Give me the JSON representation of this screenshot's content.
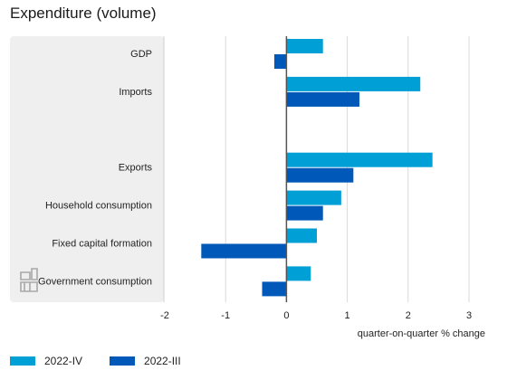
{
  "title": "Expenditure (volume)",
  "colors": {
    "series_a": "#009fd6",
    "series_b": "#0058b8",
    "panel": "#efefef",
    "panel_border": "#cfcfcf",
    "zero_line": "#555555",
    "grid": "#d9d9d9"
  },
  "logo_icon": "cbs-logo-icon",
  "chart_data": {
    "type": "bar",
    "orientation": "horizontal",
    "categories": [
      "GDP",
      "Imports",
      "",
      "Exports",
      "Household consumption",
      "Fixed capital formation",
      "Government consumption"
    ],
    "series": [
      {
        "name": "2022-IV",
        "values": [
          0.6,
          2.2,
          null,
          2.4,
          0.9,
          0.5,
          0.4
        ]
      },
      {
        "name": "2022-III",
        "values": [
          -0.2,
          1.2,
          null,
          1.1,
          0.6,
          -1.4,
          -0.4
        ]
      }
    ],
    "xlim": [
      -2,
      3
    ],
    "xticks": [
      "-2",
      "-1",
      "0",
      "1",
      "2",
      "3"
    ],
    "xlabel": "quarter-on-quarter % change",
    "grid": true,
    "legend": "bottom-left"
  }
}
